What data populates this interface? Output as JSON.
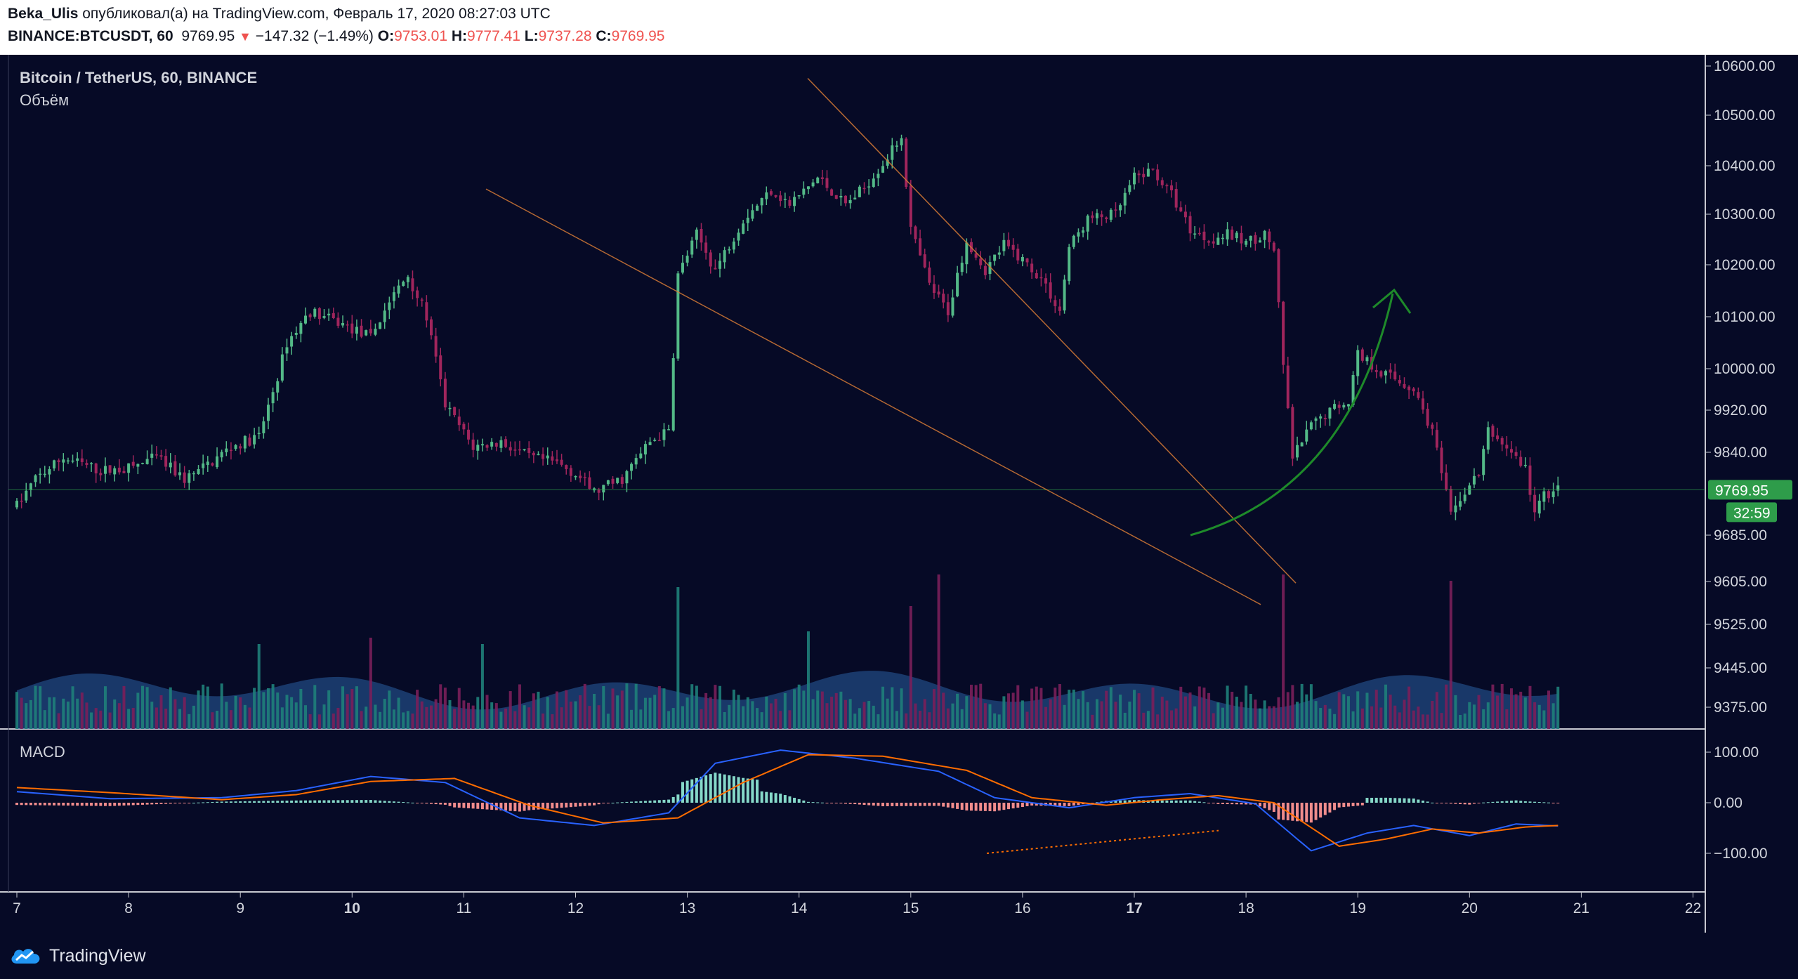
{
  "header": {
    "author": "Beka_Ulis",
    "published_text": "опубликовал(а) на TradingView.com, Февраль 17, 2020 08:27:03 UTC",
    "symbol": "BINANCE:BTCUSDT, 60",
    "last_price": "9769.95",
    "change_arrow": "▼",
    "change": "−147.32 (−1.49%)",
    "o_label": "O:",
    "o_value": "9753.01",
    "h_label": "H:",
    "h_value": "9777.41",
    "l_label": "L:",
    "l_value": "9737.28",
    "c_label": "C:",
    "c_value": "9769.95"
  },
  "legend": {
    "title": "Bitcoin / TetherUS, 60, BINANCE",
    "volume_label": "Объём",
    "macd_label": "MACD"
  },
  "price_badge": "9769.95",
  "countdown_badge": "32:59",
  "footer": {
    "brand": "TradingView"
  },
  "colors": {
    "background": "#060a26",
    "up": "#53b987",
    "down": "#a0255c",
    "volume_ma": "#2a5fa0",
    "macd_line": "#2962ff",
    "signal_line": "#ff6d00",
    "arrow": "#1e8a2a",
    "trendline": "#d67a36",
    "badge": "#2e9c4a"
  },
  "chart_data": {
    "type": "candlestick",
    "price_axis": {
      "ticks": [
        10600,
        10500,
        10400,
        10300,
        10200,
        10100,
        10000,
        9920,
        9840,
        9685,
        9605,
        9525,
        9445,
        9375
      ],
      "tick_labels": [
        "10600.00",
        "10500.00",
        "10400.00",
        "10300.00",
        "10200.00",
        "10100.00",
        "10000.00",
        "9920.00",
        "9840.00",
        "9685.00",
        "9605.00",
        "9525.00",
        "9445.00",
        "9375.00"
      ],
      "last_price": 9769.95
    },
    "macd_axis": {
      "ticks": [
        100,
        0,
        -100
      ],
      "tick_labels": [
        "100.00",
        "0.00",
        "−100.00"
      ]
    },
    "time_axis": {
      "labels": [
        "7",
        "8",
        "9",
        "10",
        "11",
        "12",
        "13",
        "14",
        "15",
        "16",
        "17",
        "18",
        "19",
        "20",
        "21",
        "22"
      ],
      "bold": [
        "10",
        "17"
      ]
    },
    "price_path": [
      [
        0,
        9740
      ],
      [
        4,
        9790
      ],
      [
        10,
        9830
      ],
      [
        18,
        9805
      ],
      [
        24,
        9810
      ],
      [
        30,
        9830
      ],
      [
        36,
        9790
      ],
      [
        40,
        9810
      ],
      [
        46,
        9850
      ],
      [
        52,
        9870
      ],
      [
        56,
        9985
      ],
      [
        58,
        10050
      ],
      [
        63,
        10110
      ],
      [
        70,
        10085
      ],
      [
        76,
        10060
      ],
      [
        80,
        10130
      ],
      [
        84,
        10180
      ],
      [
        88,
        10100
      ],
      [
        92,
        9930
      ],
      [
        98,
        9850
      ],
      [
        104,
        9860
      ],
      [
        110,
        9830
      ],
      [
        116,
        9820
      ],
      [
        120,
        9800
      ],
      [
        124,
        9765
      ],
      [
        130,
        9790
      ],
      [
        136,
        9860
      ],
      [
        140,
        9880
      ],
      [
        142,
        10180
      ],
      [
        146,
        10260
      ],
      [
        150,
        10190
      ],
      [
        156,
        10290
      ],
      [
        162,
        10350
      ],
      [
        166,
        10320
      ],
      [
        172,
        10375
      ],
      [
        178,
        10320
      ],
      [
        182,
        10355
      ],
      [
        188,
        10430
      ],
      [
        190,
        10460
      ],
      [
        192,
        10270
      ],
      [
        196,
        10160
      ],
      [
        200,
        10110
      ],
      [
        204,
        10250
      ],
      [
        208,
        10190
      ],
      [
        212,
        10240
      ],
      [
        216,
        10210
      ],
      [
        220,
        10175
      ],
      [
        224,
        10110
      ],
      [
        226,
        10235
      ],
      [
        230,
        10290
      ],
      [
        236,
        10300
      ],
      [
        240,
        10375
      ],
      [
        244,
        10390
      ],
      [
        248,
        10340
      ],
      [
        252,
        10270
      ],
      [
        256,
        10250
      ],
      [
        260,
        10260
      ],
      [
        264,
        10245
      ],
      [
        268,
        10260
      ],
      [
        270,
        10230
      ],
      [
        272,
        10005
      ],
      [
        274,
        9830
      ],
      [
        278,
        9890
      ],
      [
        282,
        9920
      ],
      [
        286,
        9940
      ],
      [
        288,
        10030
      ],
      [
        292,
        10000
      ],
      [
        296,
        9980
      ],
      [
        300,
        9960
      ],
      [
        304,
        9880
      ],
      [
        306,
        9800
      ],
      [
        308,
        9720
      ],
      [
        310,
        9755
      ],
      [
        314,
        9800
      ],
      [
        316,
        9880
      ],
      [
        320,
        9850
      ],
      [
        324,
        9810
      ],
      [
        326,
        9725
      ],
      [
        328,
        9760
      ],
      [
        331,
        9770
      ]
    ],
    "volume_spikes": [
      [
        142,
        0.9
      ],
      [
        192,
        0.75
      ],
      [
        198,
        1.0
      ],
      [
        272,
        1.0
      ],
      [
        308,
        0.95
      ],
      [
        170,
        0.55
      ],
      [
        52,
        0.45
      ],
      [
        100,
        0.45
      ],
      [
        76,
        0.5
      ]
    ],
    "macd_path": [
      [
        0,
        22
      ],
      [
        20,
        8
      ],
      [
        44,
        10
      ],
      [
        60,
        24
      ],
      [
        76,
        52
      ],
      [
        92,
        40
      ],
      [
        108,
        -30
      ],
      [
        124,
        -45
      ],
      [
        140,
        -20
      ],
      [
        150,
        78
      ],
      [
        164,
        104
      ],
      [
        180,
        88
      ],
      [
        198,
        62
      ],
      [
        210,
        10
      ],
      [
        226,
        -10
      ],
      [
        240,
        10
      ],
      [
        252,
        18
      ],
      [
        266,
        -2
      ],
      [
        278,
        -95
      ],
      [
        290,
        -60
      ],
      [
        300,
        -45
      ],
      [
        312,
        -65
      ],
      [
        322,
        -42
      ],
      [
        331,
        -46
      ]
    ],
    "signal_path": [
      [
        0,
        30
      ],
      [
        20,
        20
      ],
      [
        44,
        6
      ],
      [
        60,
        16
      ],
      [
        76,
        42
      ],
      [
        94,
        48
      ],
      [
        110,
        -5
      ],
      [
        126,
        -40
      ],
      [
        142,
        -30
      ],
      [
        156,
        40
      ],
      [
        170,
        95
      ],
      [
        186,
        92
      ],
      [
        204,
        64
      ],
      [
        218,
        10
      ],
      [
        234,
        -5
      ],
      [
        246,
        6
      ],
      [
        258,
        14
      ],
      [
        270,
        0
      ],
      [
        284,
        -86
      ],
      [
        294,
        -72
      ],
      [
        304,
        -52
      ],
      [
        314,
        -60
      ],
      [
        324,
        -48
      ],
      [
        331,
        -45
      ]
    ],
    "drawings": {
      "upper_trendline": [
        [
          10545,
          10600
        ],
        [
          9612,
          10600
        ]
      ],
      "lower_trendline": [
        [
          10360,
          9560
        ]
      ],
      "forecast_arrow": "curved up arrow from ~9690 to ~10150"
    }
  }
}
